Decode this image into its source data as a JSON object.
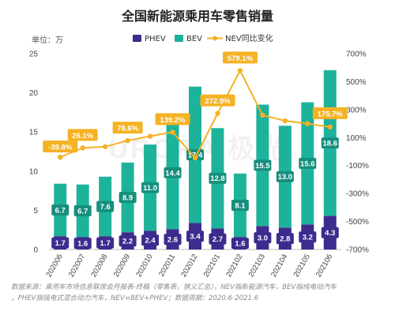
{
  "title": "全国新能源乘用车零售销量",
  "unit_label": "单位：万",
  "watermark": "URORA 极光",
  "footnote_lines": [
    "数据来源：乘用车市场信息联席会月报表-终稿（零售表，狭义汇总），NEV指新能源汽车，BEV指纯电动汽车",
    "，PHEV指插电式混合动力汽车，NEV=BEV+PHEV；数据周期：2020.6-2021.6"
  ],
  "colors": {
    "phev": "#3d2b8e",
    "bev": "#1db39b",
    "nev": "#f5b224"
  },
  "chart_data": {
    "type": "bar",
    "stacked": true,
    "categories": [
      "202006",
      "202007",
      "202008",
      "202009",
      "202010",
      "202011",
      "202012",
      "202101",
      "202102",
      "202103",
      "202104",
      "202105",
      "202106"
    ],
    "series": [
      {
        "name": "PHEV",
        "type": "bar",
        "axis": "left",
        "values": [
          1.7,
          1.6,
          1.7,
          2.2,
          2.4,
          2.6,
          3.4,
          2.7,
          1.6,
          3.0,
          2.8,
          3.2,
          4.3
        ]
      },
      {
        "name": "BEV",
        "type": "bar",
        "axis": "left",
        "values": [
          6.7,
          6.7,
          7.6,
          8.9,
          11.0,
          14.4,
          17.4,
          12.8,
          8.1,
          15.5,
          13.0,
          15.6,
          18.6
        ]
      },
      {
        "name": "NEV同比变化",
        "type": "line",
        "axis": "right",
        "values": [
          -39.8,
          26.1,
          35,
          78.6,
          110,
          139.2,
          -45,
          272.9,
          579.1,
          260,
          220,
          200,
          175.7
        ]
      }
    ],
    "labeled_pct": [
      "-39.8%",
      "26.1%",
      null,
      "78.6%",
      null,
      "139.2%",
      null,
      "272.9%",
      "579.1%",
      null,
      null,
      null,
      "175.7%"
    ],
    "left_axis": {
      "min": 0,
      "max": 25,
      "ticks": [
        0,
        5,
        10,
        15,
        20,
        25
      ]
    },
    "right_axis": {
      "min": -700,
      "max": 700,
      "ticks": [
        "-700%",
        "-500%",
        "-300%",
        "-100%",
        "100%",
        "300%",
        "500%",
        "700%"
      ],
      "tick_values": [
        -700,
        -500,
        -300,
        -100,
        100,
        300,
        500,
        700
      ]
    },
    "legend_position": "top",
    "grid": false
  }
}
